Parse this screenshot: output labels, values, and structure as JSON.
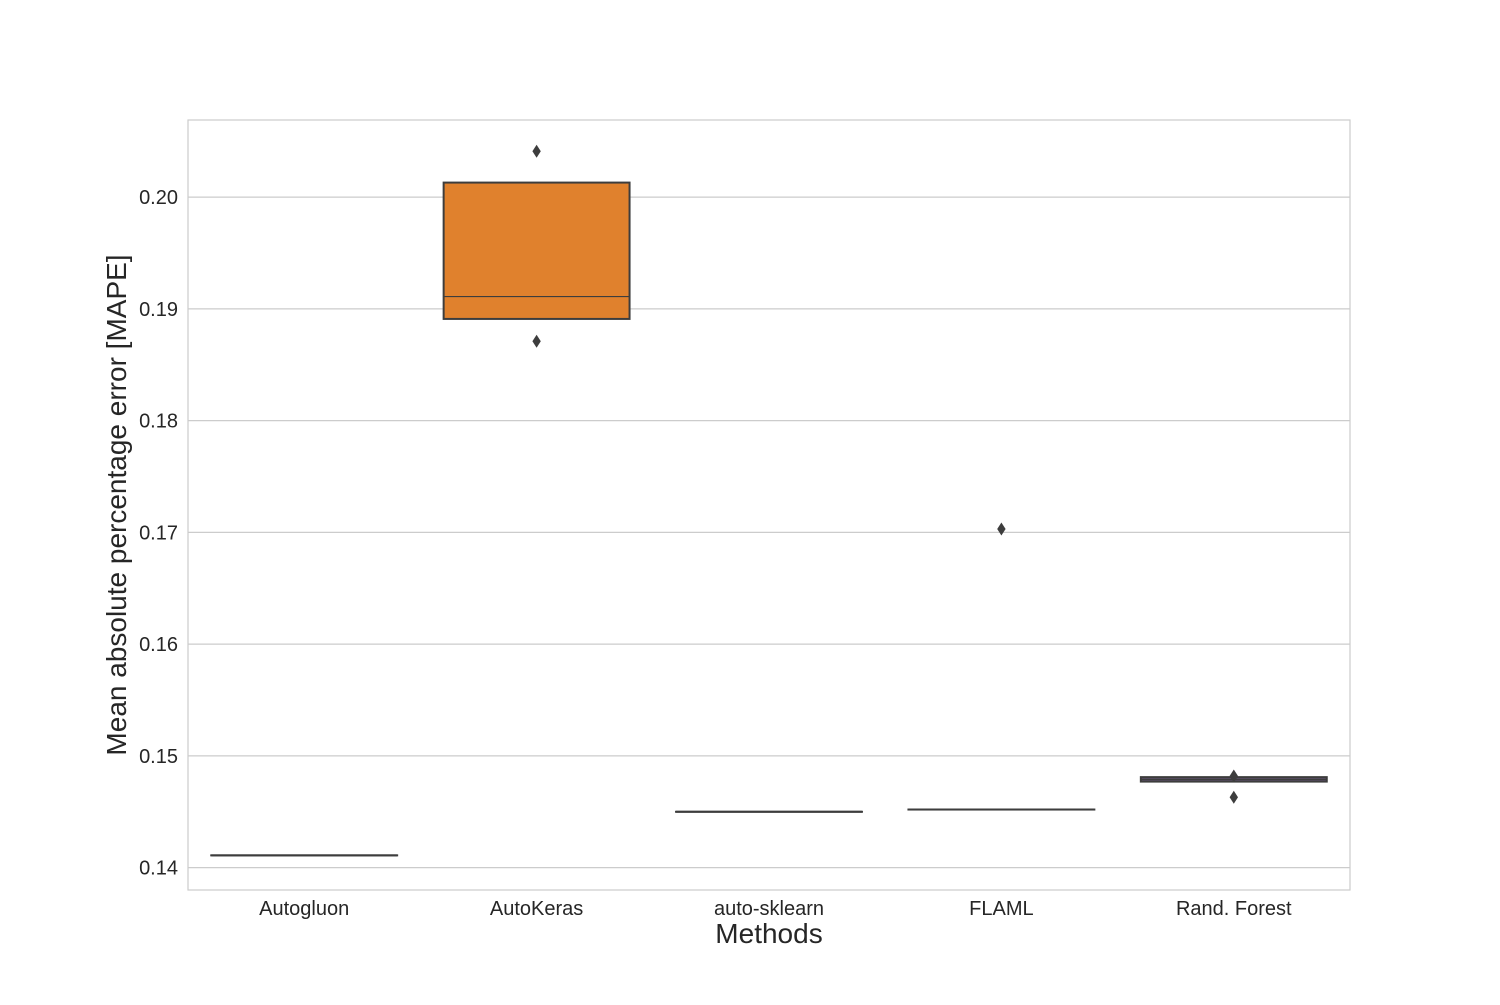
{
  "chart_data": {
    "type": "boxplot",
    "xlabel": "Methods",
    "ylabel": "Mean absolute percentage error [MAPE]",
    "ylim": [
      0.138,
      0.2069
    ],
    "yticks": [
      0.14,
      0.15,
      0.16,
      0.17,
      0.18,
      0.19,
      0.2
    ],
    "ytick_labels": [
      "0.14",
      "0.15",
      "0.16",
      "0.17",
      "0.18",
      "0.19",
      "0.20"
    ],
    "grid": "horizontal",
    "categories": [
      "Autogluon",
      "AutoKeras",
      "auto-sklearn",
      "FLAML",
      "Rand. Forest"
    ],
    "boxes": [
      {
        "q1": 0.1411,
        "median": 0.1411,
        "q3": 0.1411,
        "whisker_low": 0.1411,
        "whisker_high": 0.1411,
        "fliers": [],
        "color": "#3a76af"
      },
      {
        "q1": 0.1891,
        "median": 0.1911,
        "q3": 0.2013,
        "whisker_low": 0.1891,
        "whisker_high": 0.2013,
        "fliers": [
          0.2041,
          0.1871
        ],
        "color": "#e0812d"
      },
      {
        "q1": 0.145,
        "median": 0.145,
        "q3": 0.145,
        "whisker_low": 0.145,
        "whisker_high": 0.145,
        "fliers": [],
        "color": "#509d3a"
      },
      {
        "q1": 0.1452,
        "median": 0.1452,
        "q3": 0.1452,
        "whisker_low": 0.1452,
        "whisker_high": 0.1452,
        "fliers": [
          0.1703
        ],
        "color": "#c03a3a"
      },
      {
        "q1": 0.1477,
        "median": 0.1479,
        "q3": 0.1481,
        "whisker_low": 0.1477,
        "whisker_high": 0.1481,
        "fliers": [
          0.1482,
          0.1463
        ],
        "color": "#8c6bb1"
      }
    ]
  }
}
